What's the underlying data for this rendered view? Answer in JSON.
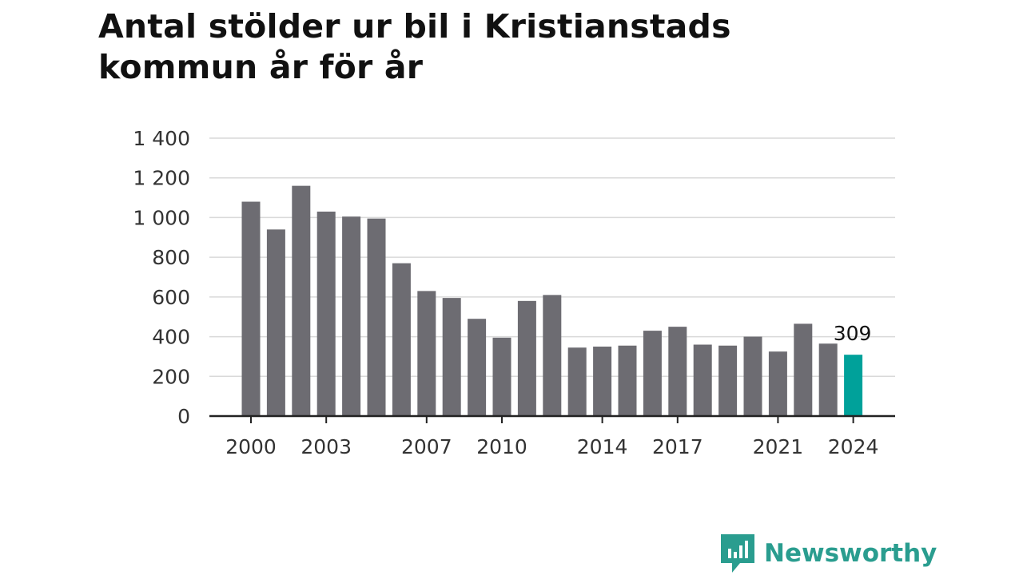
{
  "title": "Antal stölder ur bil i Kristianstads kommun år för år",
  "brand": {
    "name": "Newsworthy",
    "icon": "newsworthy-logo-icon",
    "color": "#2a9d8f"
  },
  "chart_data": {
    "type": "bar",
    "title": "Antal stölder ur bil i Kristianstads kommun år för år",
    "xlabel": "",
    "ylabel": "",
    "ylim": [
      0,
      1400
    ],
    "y_ticks": [
      0,
      200,
      400,
      600,
      800,
      1000,
      1200,
      1400
    ],
    "y_tick_labels": [
      "0",
      "200",
      "400",
      "600",
      "800",
      "1 000",
      "1 200",
      "1 400"
    ],
    "x_tick_labels": [
      "2000",
      "2003",
      "2007",
      "2010",
      "2014",
      "2017",
      "2021",
      "2024"
    ],
    "grid": true,
    "categories": [
      2000,
      2001,
      2002,
      2003,
      2004,
      2005,
      2006,
      2007,
      2008,
      2009,
      2010,
      2011,
      2012,
      2013,
      2014,
      2015,
      2016,
      2017,
      2018,
      2019,
      2020,
      2021,
      2022,
      2023,
      2024
    ],
    "values": [
      1080,
      940,
      1160,
      1030,
      1005,
      995,
      770,
      630,
      595,
      490,
      395,
      580,
      610,
      345,
      350,
      355,
      430,
      450,
      360,
      355,
      400,
      325,
      465,
      365,
      309
    ],
    "bar_color": "#6d6c72",
    "highlight_color": "#00a19a",
    "highlight_label": "309"
  }
}
